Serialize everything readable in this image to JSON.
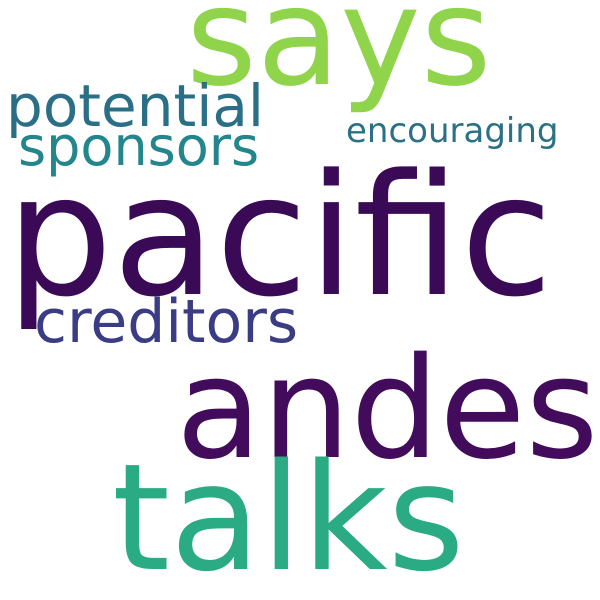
{
  "word_cloud": {
    "words": {
      "says": {
        "text": "says",
        "color": "#8fd44a"
      },
      "pacific": {
        "text": "pacific",
        "color": "#3b0a57"
      },
      "andes": {
        "text": "andes",
        "color": "#430b5b"
      },
      "talks": {
        "text": "talks",
        "color": "#2aab83"
      },
      "potential": {
        "text": "potential",
        "color": "#2a6f86"
      },
      "sponsors": {
        "text": "sponsors",
        "color": "#23868d"
      },
      "creditors": {
        "text": "creditors",
        "color": "#3b3d84"
      },
      "encouraging": {
        "text": "encouraging",
        "color": "#2b7186"
      }
    }
  }
}
